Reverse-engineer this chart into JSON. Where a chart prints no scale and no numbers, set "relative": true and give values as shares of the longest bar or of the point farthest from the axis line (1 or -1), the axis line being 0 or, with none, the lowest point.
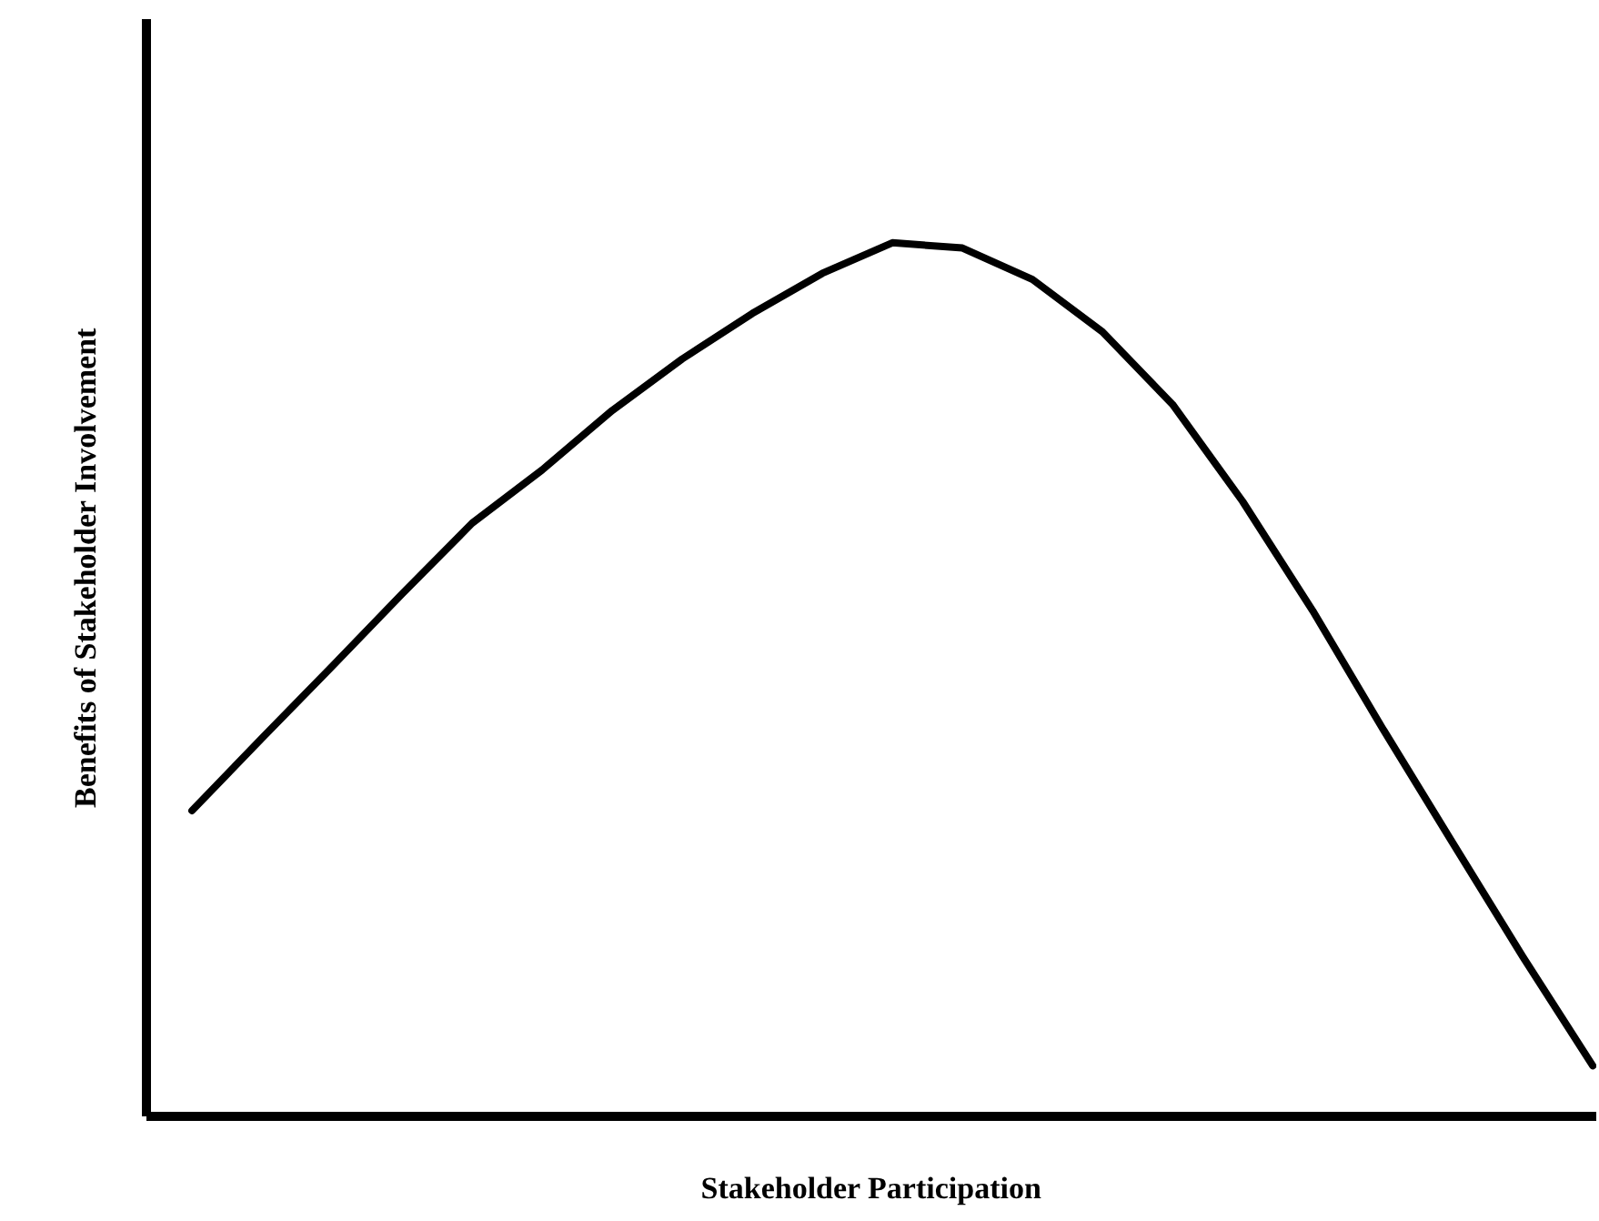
{
  "chart_data": {
    "type": "line",
    "relative": true,
    "xlabel": "Stakeholder Participation",
    "ylabel": "Benefits of Stakeholder Involvement",
    "categories": [
      null,
      null,
      null,
      null,
      null,
      null,
      null,
      null,
      null,
      null,
      null,
      null,
      null,
      null,
      null,
      null,
      null,
      null,
      null,
      null,
      null
    ],
    "series": [
      {
        "color": "#000000",
        "values": [
          0.35,
          0.433,
          0.515,
          0.598,
          0.679,
          0.74,
          0.808,
          0.867,
          0.919,
          0.965,
          1.0,
          0.994,
          0.958,
          0.898,
          0.815,
          0.704,
          0.579,
          0.444,
          0.313,
          0.183,
          0.058
        ]
      }
    ]
  }
}
